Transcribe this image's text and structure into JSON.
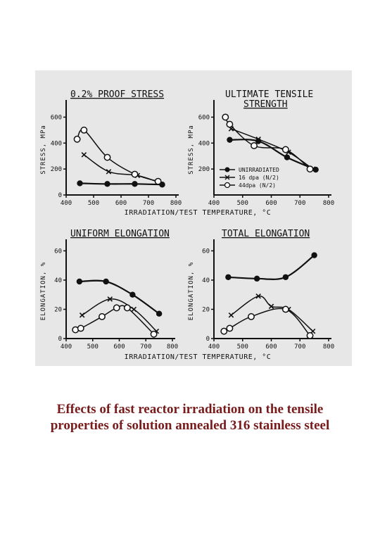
{
  "caption": {
    "line1": "Effects of fast reactor irradiation on the tensile",
    "line2": "properties of solution annealed 316 stainless steel"
  },
  "colors": {
    "panel_bg": "#e7e7e7",
    "ink": "#111111",
    "caption": "#7a1b1b"
  },
  "series_names": [
    "UNIRRADIATED",
    "16 dpa (N/2)",
    "44dpa (N/2)"
  ],
  "x_axis_title": "IRRADIATION/TEST TEMPERATURE, °C",
  "chart_data": [
    {
      "type": "line",
      "title": "0.2% PROOF STRESS",
      "ylabel": "STRESS, MPa",
      "xlim": [
        400,
        800
      ],
      "ylim": [
        0,
        700
      ],
      "xticks": [
        "400",
        "500",
        "600",
        "700",
        "800"
      ],
      "yticks": [
        "0",
        "200",
        "400",
        "600"
      ],
      "series": [
        {
          "name": "UNIRRADIATED",
          "marker": "filled",
          "points": [
            [
              450,
              90
            ],
            [
              550,
              85
            ],
            [
              650,
              85
            ],
            [
              750,
              80
            ]
          ]
        },
        {
          "name": "16 dpa (N/2)",
          "marker": "x",
          "points": [
            [
              465,
              310
            ],
            [
              555,
              180
            ],
            [
              660,
              150
            ],
            [
              735,
              100
            ]
          ]
        },
        {
          "name": "44dpa (N/2)",
          "marker": "open",
          "points": [
            [
              440,
              430
            ],
            [
              465,
              500
            ],
            [
              550,
              290
            ],
            [
              650,
              160
            ],
            [
              735,
              105
            ]
          ]
        }
      ]
    },
    {
      "type": "line",
      "title": "ULTIMATE TENSILE STRENGTH",
      "ylabel": "STRESS, MPa",
      "xlim": [
        400,
        800
      ],
      "ylim": [
        0,
        700
      ],
      "xticks": [
        "400",
        "500",
        "600",
        "700",
        "800"
      ],
      "yticks": [
        "200",
        "400",
        "600"
      ],
      "legend": "lower-right",
      "series": [
        {
          "name": "UNIRRADIATED",
          "marker": "filled",
          "points": [
            [
              455,
              425
            ],
            [
              555,
              415
            ],
            [
              655,
              290
            ],
            [
              755,
              195
            ]
          ]
        },
        {
          "name": "16 dpa (N/2)",
          "marker": "x",
          "points": [
            [
              460,
              510
            ],
            [
              555,
              430
            ],
            [
              660,
              330
            ],
            [
              745,
              200
            ]
          ]
        },
        {
          "name": "44dpa (N/2)",
          "marker": "open",
          "points": [
            [
              440,
              600
            ],
            [
              455,
              545
            ],
            [
              540,
              380
            ],
            [
              650,
              350
            ],
            [
              735,
              200
            ]
          ]
        }
      ]
    },
    {
      "type": "line",
      "title": "UNIFORM ELONGATION",
      "ylabel": "ELONGATION, %",
      "xlim": [
        400,
        800
      ],
      "ylim": [
        0,
        65
      ],
      "xticks": [
        "400",
        "500",
        "600",
        "700",
        "800"
      ],
      "yticks": [
        "0",
        "20",
        "40",
        "60"
      ],
      "series": [
        {
          "name": "UNIRRADIATED",
          "marker": "filled",
          "points": [
            [
              450,
              39
            ],
            [
              550,
              39
            ],
            [
              650,
              30
            ],
            [
              750,
              17
            ]
          ]
        },
        {
          "name": "16 dpa (N/2)",
          "marker": "x",
          "points": [
            [
              460,
              16
            ],
            [
              565,
              27
            ],
            [
              655,
              20
            ],
            [
              740,
              5
            ]
          ]
        },
        {
          "name": "44dpa (N/2)",
          "marker": "open",
          "points": [
            [
              435,
              6
            ],
            [
              455,
              7
            ],
            [
              535,
              15
            ],
            [
              590,
              21
            ],
            [
              630,
              21
            ],
            [
              730,
              3
            ]
          ]
        }
      ]
    },
    {
      "type": "line",
      "title": "TOTAL ELONGATION",
      "ylabel": "ELONGATION, %",
      "xlim": [
        400,
        800
      ],
      "ylim": [
        0,
        65
      ],
      "xticks": [
        "400",
        "500",
        "600",
        "700",
        "800"
      ],
      "yticks": [
        "0",
        "20",
        "40",
        "60"
      ],
      "series": [
        {
          "name": "UNIRRADIATED",
          "marker": "filled",
          "points": [
            [
              450,
              42
            ],
            [
              550,
              41
            ],
            [
              650,
              42
            ],
            [
              750,
              57
            ]
          ]
        },
        {
          "name": "16 dpa (N/2)",
          "marker": "x",
          "points": [
            [
              460,
              16
            ],
            [
              555,
              29
            ],
            [
              600,
              22
            ],
            [
              660,
              20
            ],
            [
              745,
              5
            ]
          ]
        },
        {
          "name": "44dpa (N/2)",
          "marker": "open",
          "points": [
            [
              435,
              5
            ],
            [
              455,
              7
            ],
            [
              530,
              15
            ],
            [
              650,
              20
            ],
            [
              735,
              2
            ]
          ]
        }
      ]
    }
  ]
}
